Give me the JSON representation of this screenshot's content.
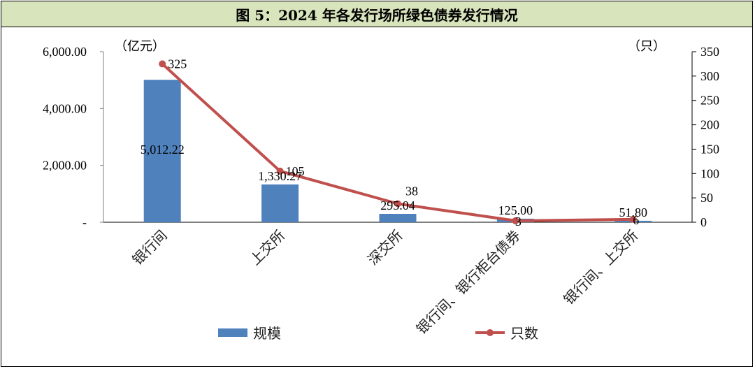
{
  "title": "图 5：2024 年各发行场所绿色债券发行情况",
  "chart_data": {
    "type": "bar",
    "categories": [
      "银行间",
      "上交所",
      "深交所",
      "银行间、银行柜台债券",
      "银行间、上交所"
    ],
    "series": [
      {
        "name": "规模",
        "type": "bar",
        "axis": "left",
        "color": "#4f81bd",
        "values": [
          5012.22,
          1330.27,
          295.04,
          125.0,
          51.8
        ],
        "labels": [
          "5,012.22",
          "1,330.27",
          "295.04",
          "125.00",
          "51.80"
        ]
      },
      {
        "name": "只数",
        "type": "line",
        "axis": "right",
        "color": "#c0504d",
        "values": [
          325,
          105,
          38,
          3,
          6
        ],
        "labels": [
          "325",
          "105",
          "38",
          "3",
          "6"
        ]
      }
    ],
    "left_axis": {
      "unit": "（亿元）",
      "ylim": [
        0,
        6000
      ],
      "ticks": [
        0,
        2000,
        4000,
        6000
      ],
      "tick_labels": [
        "-",
        "2,000.00",
        "4,000.00",
        "6,000.00"
      ]
    },
    "right_axis": {
      "unit": "（只）",
      "ylim": [
        0,
        350
      ],
      "ticks": [
        0,
        50,
        100,
        150,
        200,
        250,
        300,
        350
      ],
      "tick_labels": [
        "0",
        "50",
        "100",
        "150",
        "200",
        "250",
        "300",
        "350"
      ]
    },
    "grid": false,
    "legend_position": "bottom"
  }
}
